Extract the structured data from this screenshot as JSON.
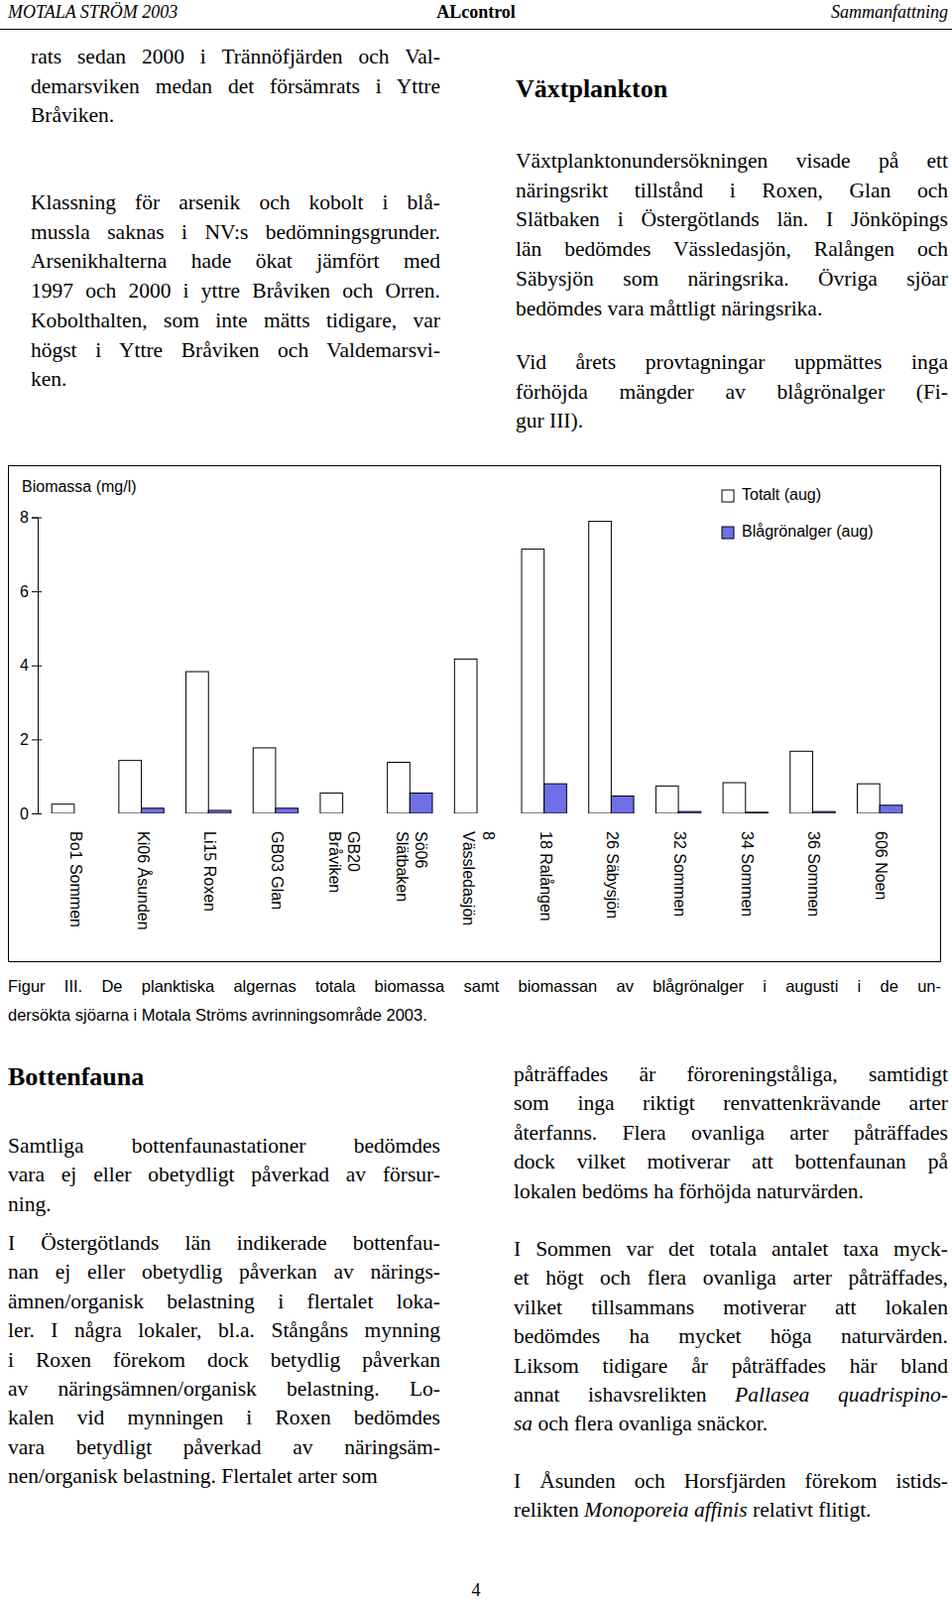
{
  "header": {
    "left": "MOTALA STRÖM 2003",
    "center": "ALcontrol",
    "right": "Sammanfattning"
  },
  "top_left": {
    "paragraphs": [
      [
        "rats sedan 2000 i Trännöfjärden och Val-",
        "demarsviken medan det försämrats i Yttre",
        "Bråviken."
      ],
      [
        "Klassning för arsenik och kobolt i blå-",
        "mussla saknas i NV:s bedömningsgrunder.",
        "Arsenikhalterna hade ökat jämfört med",
        "1997 och 2000 i yttre Bråviken och Orren.",
        "Kobolthalten, som inte mätts tidigare, var",
        "högst i Yttre Bråviken och Valdemarsvi-",
        "ken."
      ]
    ]
  },
  "top_right": {
    "heading": "Växtplankton",
    "paragraphs": [
      [
        "Växtplanktonundersökningen visade på ett",
        "näringsrikt tillstånd i Roxen, Glan och",
        "Slätbaken i Östergötlands län. I Jönköpings",
        "län bedömdes Vässledasjön, Ralången och",
        "Säbysjön som näringsrika. Övriga sjöar",
        "bedömdes vara måttligt näringsrika."
      ],
      [
        "Vid årets provtagningar uppmättes inga",
        "förhöjda mängder av blågrönalger (Fi-",
        "gur III)."
      ]
    ]
  },
  "chart_data": {
    "type": "bar",
    "y_label": "Biomassa (mg/l)",
    "categories": [
      "Bo1 Sommen",
      "Ki06 Åsunden",
      "Li15 Roxen",
      "GB03 Glan",
      "GB20\nBråviken",
      "Sö06\nSlätbaken",
      "8\nVässledasjön",
      "18 Ralången",
      "26 Säbysjön",
      "32 Sommen",
      "34 Sommen",
      "36 Sommen",
      "606 Noen"
    ],
    "series": [
      {
        "name": "Totalt (aug)",
        "color": "#ffffff",
        "values": [
          0.25,
          1.43,
          3.83,
          1.77,
          0.55,
          1.38,
          4.17,
          7.14,
          7.89,
          0.74,
          0.83,
          1.68,
          0.8
        ]
      },
      {
        "name": "Blågrönalger (aug)",
        "color": "#6f6fe8",
        "values": [
          0,
          0.14,
          0.08,
          0.14,
          0,
          0.55,
          0,
          0.8,
          0.47,
          0.05,
          0.03,
          0.05,
          0.22
        ]
      }
    ],
    "ylim": [
      0,
      8
    ],
    "yticks": [
      0,
      2,
      4,
      6,
      8
    ],
    "grid": false,
    "legend": "top-right"
  },
  "caption": [
    "Figur III. De planktiska algernas totala biomassa samt biomassan av blågrönalger i augusti i de un-",
    "dersökta sjöarna i Motala Ströms avrinningsområde 2003."
  ],
  "bottom_left": {
    "heading": "Bottenfauna",
    "paragraphs": [
      [
        "Samtliga bottenfaunastationer bedömdes",
        "vara ej eller obetydligt påverkad av försur-",
        "ning."
      ],
      [
        "I Östergötlands län indikerade bottenfau-",
        "nan ej eller obetydlig påverkan av närings-",
        "ämnen/organisk belastning i flertalet loka-",
        "ler. I några lokaler, bl.a. Stångåns mynning",
        "i Roxen förekom dock betydlig påverkan",
        "av näringsämnen/organisk belastning. Lo-",
        "kalen vid mynningen i Roxen bedömdes",
        "vara betydligt påverkad av näringsäm-",
        "nen/organisk belastning. Flertalet arter som"
      ]
    ]
  },
  "bottom_right": {
    "paragraphs": [
      [
        "påträffades är föroreningståliga, samtidigt",
        "som inga riktigt renvattenkrävande arter",
        "återfanns. Flera ovanliga arter påträffades",
        "dock vilket motiverar att bottenfaunan på",
        "lokalen bedöms ha förhöjda naturvärden."
      ],
      [
        "I Sommen var det totala antalet taxa myck-",
        "et högt och flera ovanliga arter påträffades,",
        "vilket tillsammans motiverar att lokalen",
        "bedömdes ha mycket höga naturvärden.",
        "Liksom tidigare år påträffades här bland",
        [
          "annat ishavsrelikten ",
          {
            "em": "Pallasea quadrispino-"
          }
        ],
        [
          {
            "em": "sa"
          },
          " och flera ovanliga snäckor."
        ]
      ],
      [
        "I Åsunden och Horsfjärden förekom istids-",
        [
          "relikten ",
          {
            "em": "Monoporeia affinis"
          },
          " relativt flitigt."
        ]
      ]
    ]
  },
  "page_number": "4"
}
